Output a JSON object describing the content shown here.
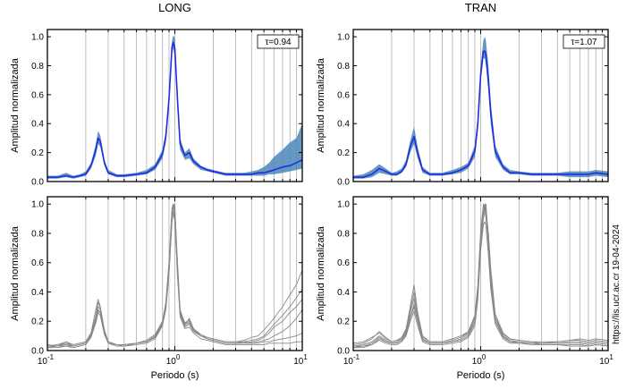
{
  "figure": {
    "side_note": "https://lis.ucr.ac.cr 19-04-2024"
  },
  "chart_data": [
    {
      "type": "line",
      "panel": "top-left",
      "title": "LONG",
      "ylabel": "Amplitud normalizada",
      "xlabel": "",
      "x_scale": "log",
      "xlim": [
        0.1,
        10
      ],
      "ylim": [
        0,
        1.05
      ],
      "annotation": "τ=0.94",
      "legend": "none",
      "grid": "vertical lines at log ticks",
      "series": [
        {
          "kind": "band",
          "color": "#4a86b8",
          "x": [
            0.1,
            0.12,
            0.14,
            0.16,
            0.18,
            0.2,
            0.22,
            0.24,
            0.25,
            0.26,
            0.28,
            0.3,
            0.35,
            0.4,
            0.5,
            0.6,
            0.7,
            0.8,
            0.85,
            0.9,
            0.95,
            0.97,
            1.0,
            1.05,
            1.1,
            1.2,
            1.3,
            1.4,
            1.6,
            1.8,
            2,
            2.5,
            3,
            3.5,
            4,
            4.5,
            5,
            5.5,
            6,
            7,
            8,
            9,
            10
          ],
          "upper": [
            0.04,
            0.04,
            0.06,
            0.04,
            0.05,
            0.07,
            0.13,
            0.26,
            0.35,
            0.32,
            0.15,
            0.08,
            0.05,
            0.05,
            0.06,
            0.08,
            0.12,
            0.22,
            0.35,
            0.62,
            0.97,
            1.01,
            0.99,
            0.62,
            0.3,
            0.2,
            0.23,
            0.16,
            0.11,
            0.09,
            0.08,
            0.06,
            0.06,
            0.06,
            0.07,
            0.08,
            0.1,
            0.13,
            0.17,
            0.22,
            0.27,
            0.3,
            0.4
          ],
          "lower": [
            0.02,
            0.02,
            0.03,
            0.02,
            0.03,
            0.04,
            0.09,
            0.18,
            0.26,
            0.24,
            0.11,
            0.05,
            0.03,
            0.03,
            0.04,
            0.05,
            0.08,
            0.16,
            0.27,
            0.52,
            0.88,
            0.92,
            0.86,
            0.5,
            0.22,
            0.15,
            0.16,
            0.12,
            0.08,
            0.07,
            0.06,
            0.04,
            0.04,
            0.04,
            0.04,
            0.04,
            0.04,
            0.05,
            0.05,
            0.06,
            0.07,
            0.08,
            0.09
          ]
        },
        {
          "kind": "line",
          "color": "#1f2de0",
          "x": [
            0.1,
            0.12,
            0.14,
            0.16,
            0.18,
            0.2,
            0.22,
            0.24,
            0.25,
            0.26,
            0.28,
            0.3,
            0.35,
            0.4,
            0.5,
            0.6,
            0.7,
            0.8,
            0.85,
            0.9,
            0.95,
            0.97,
            1.0,
            1.05,
            1.1,
            1.2,
            1.3,
            1.4,
            1.6,
            1.8,
            2,
            2.5,
            3,
            3.5,
            4,
            4.5,
            5,
            5.5,
            6,
            7,
            8,
            9,
            10
          ],
          "y": [
            0.03,
            0.03,
            0.04,
            0.03,
            0.04,
            0.05,
            0.11,
            0.22,
            0.3,
            0.28,
            0.13,
            0.06,
            0.04,
            0.04,
            0.05,
            0.06,
            0.1,
            0.19,
            0.31,
            0.57,
            0.93,
            0.96,
            0.92,
            0.56,
            0.26,
            0.18,
            0.2,
            0.14,
            0.1,
            0.08,
            0.07,
            0.05,
            0.05,
            0.05,
            0.05,
            0.06,
            0.06,
            0.07,
            0.08,
            0.1,
            0.11,
            0.13,
            0.15
          ]
        }
      ]
    },
    {
      "type": "line",
      "panel": "top-right",
      "title": "TRAN",
      "ylabel": "Amplitud normalizada",
      "xlabel": "",
      "x_scale": "log",
      "xlim": [
        0.1,
        10
      ],
      "ylim": [
        0,
        1.05
      ],
      "annotation": "τ=1.07",
      "legend": "none",
      "grid": "vertical lines at log ticks",
      "series": [
        {
          "kind": "band",
          "color": "#4a86b8",
          "x": [
            0.1,
            0.12,
            0.14,
            0.16,
            0.18,
            0.2,
            0.22,
            0.24,
            0.26,
            0.28,
            0.3,
            0.32,
            0.35,
            0.4,
            0.5,
            0.6,
            0.7,
            0.8,
            0.9,
            0.95,
            1.0,
            1.05,
            1.08,
            1.1,
            1.15,
            1.2,
            1.3,
            1.5,
            1.7,
            2,
            2.5,
            3,
            4,
            5,
            6,
            7,
            8,
            10
          ],
          "upper": [
            0.04,
            0.05,
            0.08,
            0.12,
            0.09,
            0.06,
            0.07,
            0.09,
            0.15,
            0.28,
            0.38,
            0.24,
            0.1,
            0.06,
            0.06,
            0.08,
            0.1,
            0.13,
            0.25,
            0.45,
            0.8,
            0.98,
            1.0,
            0.97,
            0.8,
            0.55,
            0.25,
            0.12,
            0.08,
            0.07,
            0.06,
            0.06,
            0.06,
            0.07,
            0.07,
            0.07,
            0.08,
            0.07
          ],
          "lower": [
            0.02,
            0.02,
            0.03,
            0.06,
            0.05,
            0.04,
            0.04,
            0.06,
            0.1,
            0.2,
            0.26,
            0.16,
            0.06,
            0.04,
            0.04,
            0.05,
            0.06,
            0.09,
            0.17,
            0.35,
            0.68,
            0.85,
            0.85,
            0.8,
            0.62,
            0.4,
            0.17,
            0.08,
            0.05,
            0.05,
            0.04,
            0.04,
            0.04,
            0.03,
            0.03,
            0.03,
            0.04,
            0.03
          ]
        },
        {
          "kind": "line",
          "color": "#1f2de0",
          "x": [
            0.1,
            0.12,
            0.14,
            0.16,
            0.18,
            0.2,
            0.22,
            0.24,
            0.26,
            0.28,
            0.3,
            0.32,
            0.35,
            0.4,
            0.5,
            0.6,
            0.7,
            0.8,
            0.9,
            0.95,
            1.0,
            1.05,
            1.08,
            1.1,
            1.15,
            1.2,
            1.3,
            1.5,
            1.7,
            2,
            2.5,
            3,
            4,
            5,
            6,
            7,
            8,
            10
          ],
          "y": [
            0.03,
            0.03,
            0.05,
            0.09,
            0.07,
            0.05,
            0.05,
            0.07,
            0.12,
            0.24,
            0.31,
            0.2,
            0.08,
            0.05,
            0.05,
            0.06,
            0.08,
            0.11,
            0.21,
            0.4,
            0.74,
            0.9,
            0.9,
            0.87,
            0.7,
            0.47,
            0.21,
            0.1,
            0.06,
            0.06,
            0.05,
            0.05,
            0.05,
            0.05,
            0.05,
            0.05,
            0.06,
            0.05
          ]
        }
      ]
    },
    {
      "type": "line",
      "panel": "bottom-left",
      "title": "",
      "ylabel": "Amplitud normalizada",
      "xlabel": "Periodo (s)",
      "x_scale": "log",
      "xlim": [
        0.1,
        10
      ],
      "ylim": [
        0,
        1.05
      ],
      "legend": "none",
      "grid": "vertical lines at log ticks",
      "series_color": "#888888",
      "x": [
        0.1,
        0.12,
        0.14,
        0.16,
        0.18,
        0.2,
        0.22,
        0.24,
        0.25,
        0.26,
        0.28,
        0.3,
        0.35,
        0.4,
        0.5,
        0.6,
        0.7,
        0.8,
        0.85,
        0.9,
        0.95,
        0.97,
        1.0,
        1.05,
        1.1,
        1.2,
        1.3,
        1.4,
        1.6,
        1.8,
        2,
        2.5,
        3,
        3.5,
        4,
        4.5,
        5,
        5.5,
        6,
        7,
        8,
        9,
        10
      ],
      "series": [
        {
          "y": [
            0.03,
            0.04,
            0.06,
            0.04,
            0.05,
            0.06,
            0.12,
            0.28,
            0.35,
            0.3,
            0.14,
            0.06,
            0.04,
            0.04,
            0.05,
            0.06,
            0.1,
            0.2,
            0.33,
            0.6,
            0.97,
            1.0,
            0.96,
            0.6,
            0.28,
            0.18,
            0.22,
            0.15,
            0.11,
            0.09,
            0.08,
            0.06,
            0.06,
            0.07,
            0.09,
            0.1,
            0.14,
            0.18,
            0.22,
            0.3,
            0.38,
            0.45,
            0.55
          ]
        },
        {
          "y": [
            0.02,
            0.03,
            0.03,
            0.03,
            0.04,
            0.05,
            0.1,
            0.2,
            0.28,
            0.26,
            0.12,
            0.06,
            0.04,
            0.03,
            0.05,
            0.06,
            0.09,
            0.18,
            0.3,
            0.55,
            0.92,
            0.98,
            1.0,
            0.55,
            0.25,
            0.17,
            0.19,
            0.14,
            0.1,
            0.08,
            0.07,
            0.05,
            0.05,
            0.05,
            0.06,
            0.07,
            0.09,
            0.12,
            0.16,
            0.2,
            0.26,
            0.3,
            0.35
          ]
        },
        {
          "y": [
            0.04,
            0.03,
            0.05,
            0.03,
            0.04,
            0.05,
            0.11,
            0.22,
            0.3,
            0.28,
            0.13,
            0.06,
            0.04,
            0.04,
            0.05,
            0.06,
            0.1,
            0.19,
            0.31,
            0.58,
            0.94,
            0.99,
            0.92,
            0.57,
            0.27,
            0.19,
            0.21,
            0.14,
            0.1,
            0.08,
            0.07,
            0.05,
            0.05,
            0.06,
            0.05,
            0.06,
            0.07,
            0.08,
            0.1,
            0.13,
            0.17,
            0.22,
            0.28
          ]
        },
        {
          "y": [
            0.03,
            0.03,
            0.04,
            0.03,
            0.04,
            0.05,
            0.1,
            0.21,
            0.27,
            0.26,
            0.12,
            0.05,
            0.04,
            0.04,
            0.05,
            0.06,
            0.09,
            0.18,
            0.29,
            0.54,
            0.9,
            0.95,
            0.9,
            0.52,
            0.24,
            0.16,
            0.18,
            0.13,
            0.1,
            0.08,
            0.07,
            0.05,
            0.05,
            0.05,
            0.05,
            0.05,
            0.06,
            0.06,
            0.07,
            0.08,
            0.09,
            0.1,
            0.12
          ]
        },
        {
          "y": [
            0.03,
            0.04,
            0.05,
            0.04,
            0.05,
            0.06,
            0.12,
            0.24,
            0.33,
            0.29,
            0.14,
            0.06,
            0.04,
            0.04,
            0.05,
            0.07,
            0.11,
            0.2,
            0.32,
            0.6,
            0.96,
            1.0,
            0.95,
            0.58,
            0.26,
            0.18,
            0.2,
            0.15,
            0.1,
            0.09,
            0.08,
            0.06,
            0.06,
            0.06,
            0.07,
            0.08,
            0.1,
            0.14,
            0.18,
            0.24,
            0.3,
            0.36,
            0.42
          ]
        },
        {
          "y": [
            0.02,
            0.02,
            0.03,
            0.02,
            0.03,
            0.04,
            0.09,
            0.19,
            0.26,
            0.24,
            0.11,
            0.05,
            0.03,
            0.03,
            0.04,
            0.05,
            0.08,
            0.17,
            0.28,
            0.52,
            0.88,
            0.94,
            0.88,
            0.5,
            0.23,
            0.15,
            0.16,
            0.12,
            0.08,
            0.07,
            0.06,
            0.04,
            0.04,
            0.04,
            0.04,
            0.04,
            0.04,
            0.05,
            0.05,
            0.05,
            0.05,
            0.06,
            0.06
          ]
        }
      ]
    },
    {
      "type": "line",
      "panel": "bottom-right",
      "title": "",
      "ylabel": "Amplitud normalizada",
      "xlabel": "Periodo (s)",
      "x_scale": "log",
      "xlim": [
        0.1,
        10
      ],
      "ylim": [
        0,
        1.05
      ],
      "legend": "none",
      "grid": "vertical lines at log ticks",
      "series_color": "#888888",
      "x": [
        0.1,
        0.12,
        0.14,
        0.16,
        0.18,
        0.2,
        0.22,
        0.24,
        0.26,
        0.28,
        0.3,
        0.32,
        0.35,
        0.4,
        0.5,
        0.6,
        0.7,
        0.8,
        0.9,
        0.95,
        1.0,
        1.05,
        1.08,
        1.1,
        1.15,
        1.2,
        1.3,
        1.5,
        1.7,
        2,
        2.5,
        3,
        4,
        5,
        6,
        7,
        8,
        10
      ],
      "series": [
        {
          "y": [
            0.04,
            0.05,
            0.08,
            0.13,
            0.09,
            0.06,
            0.07,
            0.09,
            0.15,
            0.3,
            0.45,
            0.26,
            0.1,
            0.06,
            0.06,
            0.08,
            0.1,
            0.13,
            0.24,
            0.45,
            0.8,
            0.98,
            1.0,
            0.97,
            0.8,
            0.56,
            0.25,
            0.12,
            0.08,
            0.07,
            0.06,
            0.06,
            0.06,
            0.07,
            0.08,
            0.07,
            0.08,
            0.07
          ]
        },
        {
          "y": [
            0.02,
            0.03,
            0.04,
            0.08,
            0.06,
            0.05,
            0.05,
            0.07,
            0.11,
            0.22,
            0.3,
            0.2,
            0.07,
            0.05,
            0.05,
            0.06,
            0.07,
            0.1,
            0.19,
            0.38,
            0.72,
            0.9,
            0.95,
            0.99,
            0.75,
            0.48,
            0.2,
            0.09,
            0.06,
            0.05,
            0.05,
            0.04,
            0.04,
            0.04,
            0.04,
            0.03,
            0.04,
            0.03
          ]
        },
        {
          "y": [
            0.03,
            0.04,
            0.06,
            0.1,
            0.07,
            0.05,
            0.06,
            0.08,
            0.13,
            0.26,
            0.36,
            0.22,
            0.08,
            0.05,
            0.05,
            0.07,
            0.09,
            0.12,
            0.22,
            0.42,
            0.76,
            0.95,
            1.0,
            0.92,
            0.72,
            0.5,
            0.22,
            0.1,
            0.07,
            0.06,
            0.05,
            0.05,
            0.05,
            0.06,
            0.06,
            0.05,
            0.06,
            0.05
          ]
        },
        {
          "y": [
            0.02,
            0.02,
            0.04,
            0.07,
            0.05,
            0.04,
            0.04,
            0.06,
            0.1,
            0.2,
            0.27,
            0.17,
            0.06,
            0.04,
            0.04,
            0.05,
            0.06,
            0.09,
            0.17,
            0.35,
            0.68,
            0.86,
            0.88,
            0.85,
            0.65,
            0.42,
            0.18,
            0.08,
            0.05,
            0.05,
            0.04,
            0.04,
            0.04,
            0.03,
            0.03,
            0.03,
            0.04,
            0.03
          ]
        },
        {
          "y": [
            0.05,
            0.06,
            0.09,
            0.12,
            0.08,
            0.06,
            0.07,
            0.08,
            0.14,
            0.28,
            0.4,
            0.24,
            0.09,
            0.06,
            0.06,
            0.08,
            0.1,
            0.12,
            0.23,
            0.44,
            0.82,
            1.0,
            0.96,
            0.9,
            0.78,
            0.52,
            0.23,
            0.11,
            0.08,
            0.07,
            0.06,
            0.05,
            0.06,
            0.07,
            0.07,
            0.06,
            0.07,
            0.06
          ]
        },
        {
          "y": [
            0.03,
            0.03,
            0.05,
            0.09,
            0.06,
            0.05,
            0.05,
            0.07,
            0.12,
            0.23,
            0.32,
            0.2,
            0.07,
            0.05,
            0.05,
            0.06,
            0.08,
            0.11,
            0.2,
            0.4,
            0.74,
            0.93,
            0.98,
            1.0,
            0.7,
            0.46,
            0.2,
            0.1,
            0.06,
            0.06,
            0.05,
            0.05,
            0.05,
            0.05,
            0.05,
            0.04,
            0.05,
            0.04
          ]
        }
      ]
    }
  ]
}
